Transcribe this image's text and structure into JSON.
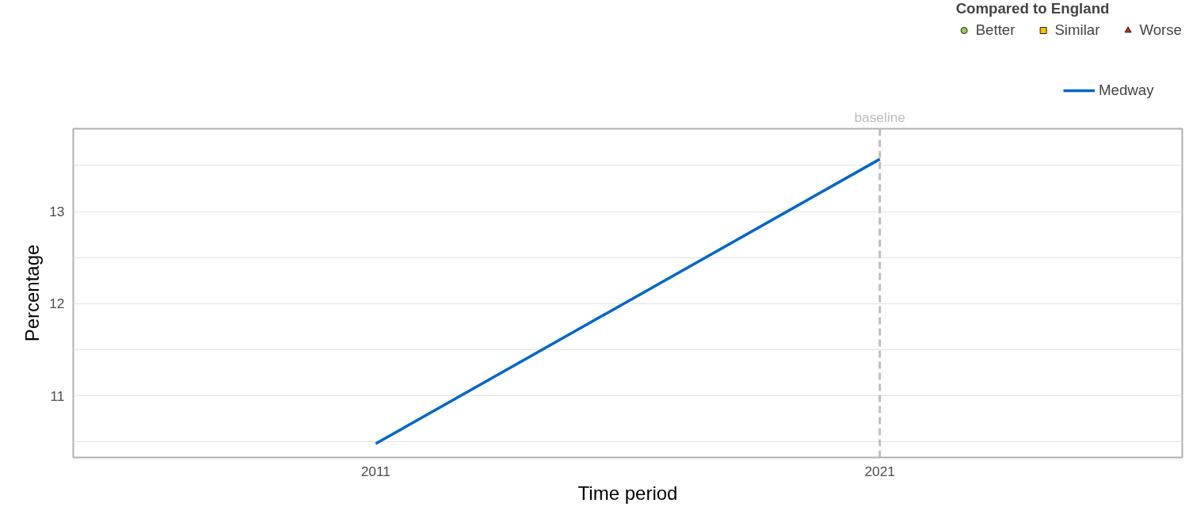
{
  "chart_data": {
    "type": "line",
    "xlabel": "Time period",
    "ylabel": "Percentage",
    "legend_title": "Compared to England",
    "categories": [
      "2011",
      "2021"
    ],
    "series": [
      {
        "name": "Better",
        "type": "scatter",
        "marker": "circle",
        "color": "#92d050",
        "values": [
          null,
          null
        ]
      },
      {
        "name": "Similar",
        "type": "scatter",
        "marker": "square",
        "color": "#ffc000",
        "values": [
          null,
          null
        ]
      },
      {
        "name": "Worse",
        "type": "scatter",
        "marker": "triangle",
        "color": "#c0281a",
        "values": [
          null,
          null
        ]
      },
      {
        "name": "Medway",
        "color": "#0066cc",
        "values": [
          10.48,
          13.57
        ]
      }
    ],
    "ylim": [
      10.33,
      13.9
    ],
    "yticks": [
      {
        "value": 10.5,
        "label": null
      },
      11,
      {
        "value": 11.5,
        "label": null
      },
      12,
      {
        "value": 12.5,
        "label": null
      },
      13,
      {
        "value": 13.5,
        "label": null
      }
    ],
    "ref_lines": [
      {
        "axis": "x",
        "value": "2021",
        "label": "baseline",
        "color": "#bebebe",
        "line_style": "dashed"
      }
    ],
    "grid": "y",
    "legend": "top right"
  }
}
